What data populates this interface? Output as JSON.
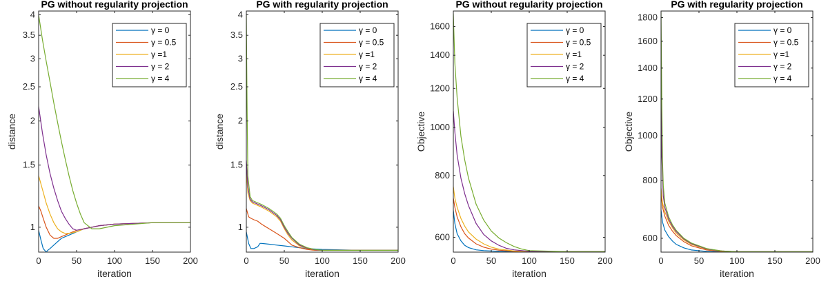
{
  "chart_data": [
    {
      "type": "line",
      "title": "PG without regularity projection",
      "xlabel": "iteration",
      "ylabel": "distance",
      "xlim": [
        0,
        200
      ],
      "ylim": [
        0.85,
        4.1
      ],
      "yscale": "log",
      "xticks": [
        "0",
        "50",
        "100",
        "150",
        "200"
      ],
      "yticks": [
        {
          "v": 1,
          "label": "1"
        },
        {
          "v": 1.5,
          "label": "1.5"
        },
        {
          "v": 2,
          "label": "2"
        },
        {
          "v": 2.5,
          "label": "2.5"
        },
        {
          "v": 3,
          "label": "3"
        },
        {
          "v": 3.5,
          "label": "3.5"
        },
        {
          "v": 4,
          "label": "4"
        }
      ],
      "legend_position": "top-right",
      "series": [
        {
          "name": "γ = 0",
          "color": "#0072BD",
          "x": [
            0,
            3,
            6,
            8,
            10,
            12,
            15,
            20,
            25,
            30,
            40,
            50,
            60,
            80,
            100,
            150,
            200
          ],
          "y": [
            0.98,
            0.92,
            0.87,
            0.86,
            0.85,
            0.86,
            0.87,
            0.89,
            0.91,
            0.93,
            0.95,
            0.97,
            0.99,
            1.01,
            1.02,
            1.03,
            1.03
          ]
        },
        {
          "name": "γ = 0.5",
          "color": "#D95319",
          "x": [
            0,
            3,
            6,
            10,
            15,
            20,
            25,
            30,
            40,
            50,
            60,
            80,
            100,
            150,
            200
          ],
          "y": [
            1.15,
            1.11,
            1.06,
            1.0,
            0.95,
            0.93,
            0.93,
            0.94,
            0.96,
            0.98,
            0.99,
            1.01,
            1.02,
            1.03,
            1.03
          ]
        },
        {
          "name": "γ =1",
          "color": "#EDB120",
          "x": [
            0,
            5,
            10,
            15,
            20,
            25,
            30,
            35,
            40,
            50,
            60,
            80,
            100,
            150,
            200
          ],
          "y": [
            1.4,
            1.28,
            1.17,
            1.09,
            1.03,
            0.99,
            0.97,
            0.96,
            0.96,
            0.97,
            0.99,
            1.01,
            1.02,
            1.03,
            1.03
          ]
        },
        {
          "name": "γ = 2",
          "color": "#7E2F8E",
          "x": [
            0,
            5,
            10,
            15,
            20,
            25,
            30,
            35,
            40,
            45,
            50,
            60,
            80,
            100,
            150,
            200
          ],
          "y": [
            2.2,
            1.85,
            1.6,
            1.42,
            1.29,
            1.19,
            1.11,
            1.06,
            1.02,
            0.99,
            0.98,
            0.99,
            1.01,
            1.02,
            1.03,
            1.03
          ]
        },
        {
          "name": "γ = 4",
          "color": "#77AC30",
          "x": [
            0,
            5,
            10,
            15,
            20,
            25,
            30,
            35,
            40,
            45,
            50,
            55,
            60,
            70,
            80,
            100,
            150,
            200
          ],
          "y": [
            4.0,
            3.4,
            2.95,
            2.58,
            2.25,
            1.98,
            1.75,
            1.56,
            1.4,
            1.27,
            1.17,
            1.09,
            1.03,
            0.99,
            0.99,
            1.01,
            1.03,
            1.03
          ]
        }
      ]
    },
    {
      "type": "line",
      "title": "PG with regularity projection",
      "xlabel": "iteration",
      "ylabel": "distance",
      "xlim": [
        0,
        200
      ],
      "ylim": [
        0.85,
        4.1
      ],
      "yscale": "log",
      "xticks": [
        "0",
        "50",
        "100",
        "150",
        "200"
      ],
      "yticks": [
        {
          "v": 1,
          "label": "1"
        },
        {
          "v": 1.5,
          "label": "1.5"
        },
        {
          "v": 2,
          "label": "2"
        },
        {
          "v": 2.5,
          "label": "2.5"
        },
        {
          "v": 3,
          "label": "3"
        },
        {
          "v": 3.5,
          "label": "3.5"
        },
        {
          "v": 4,
          "label": "4"
        }
      ],
      "legend_position": "top-right",
      "series": [
        {
          "name": "γ = 0",
          "color": "#0072BD",
          "x": [
            0,
            3,
            6,
            10,
            15,
            18,
            20,
            30,
            40,
            50,
            60,
            70,
            80,
            100,
            150,
            200
          ],
          "y": [
            0.97,
            0.9,
            0.87,
            0.87,
            0.88,
            0.9,
            0.9,
            0.895,
            0.89,
            0.885,
            0.88,
            0.875,
            0.87,
            0.865,
            0.86,
            0.86
          ]
        },
        {
          "name": "γ = 0.5",
          "color": "#D95319",
          "x": [
            0,
            3,
            6,
            10,
            15,
            20,
            30,
            40,
            50,
            55,
            60,
            70,
            80,
            90,
            100,
            150,
            200
          ],
          "y": [
            1.13,
            1.07,
            1.06,
            1.05,
            1.04,
            1.02,
            0.99,
            0.96,
            0.93,
            0.91,
            0.89,
            0.875,
            0.865,
            0.86,
            0.86,
            0.86,
            0.86
          ]
        },
        {
          "name": "γ =1",
          "color": "#EDB120",
          "x": [
            0,
            2,
            5,
            8,
            12,
            20,
            30,
            40,
            45,
            50,
            55,
            60,
            70,
            80,
            90,
            100,
            150,
            200
          ],
          "y": [
            1.45,
            1.25,
            1.19,
            1.17,
            1.16,
            1.14,
            1.11,
            1.07,
            1.04,
            0.99,
            0.95,
            0.92,
            0.885,
            0.87,
            0.862,
            0.86,
            0.86,
            0.86
          ]
        },
        {
          "name": "γ = 2",
          "color": "#7E2F8E",
          "x": [
            0,
            2,
            5,
            8,
            12,
            20,
            30,
            40,
            45,
            50,
            55,
            60,
            70,
            80,
            90,
            100,
            150,
            200
          ],
          "y": [
            1.55,
            1.3,
            1.2,
            1.18,
            1.17,
            1.15,
            1.12,
            1.08,
            1.05,
            1.0,
            0.96,
            0.93,
            0.89,
            0.872,
            0.863,
            0.86,
            0.86,
            0.86
          ]
        },
        {
          "name": "γ = 4",
          "color": "#77AC30",
          "x": [
            0,
            1,
            2,
            5,
            8,
            12,
            20,
            30,
            40,
            45,
            50,
            55,
            60,
            70,
            80,
            90,
            100,
            150,
            200
          ],
          "y": [
            4.0,
            2.2,
            1.4,
            1.22,
            1.19,
            1.18,
            1.16,
            1.13,
            1.09,
            1.06,
            1.01,
            0.97,
            0.935,
            0.895,
            0.875,
            0.865,
            0.86,
            0.86,
            0.86
          ]
        }
      ]
    },
    {
      "type": "line",
      "title": "PG without regularity projection",
      "xlabel": "iteration",
      "ylabel": "Objective",
      "xlim": [
        0,
        200
      ],
      "ylim": [
        560,
        1720
      ],
      "yscale": "log",
      "xticks": [
        "0",
        "50",
        "100",
        "150",
        "200"
      ],
      "yticks": [
        {
          "v": 600,
          "label": "600"
        },
        {
          "v": 800,
          "label": "800"
        },
        {
          "v": 1000,
          "label": "1000"
        },
        {
          "v": 1200,
          "label": "1200"
        },
        {
          "v": 1400,
          "label": "1400"
        },
        {
          "v": 1600,
          "label": "1600"
        }
      ],
      "legend_position": "top-right",
      "series": [
        {
          "name": "γ = 0",
          "color": "#0072BD",
          "x": [
            0,
            2,
            5,
            10,
            15,
            20,
            30,
            40,
            60,
            80,
            100,
            150,
            200
          ],
          "y": [
            680,
            640,
            610,
            590,
            578,
            572,
            566,
            564,
            562,
            561,
            561,
            561,
            561
          ]
        },
        {
          "name": "γ = 0.5",
          "color": "#D95319",
          "x": [
            0,
            2,
            5,
            10,
            15,
            20,
            30,
            40,
            50,
            60,
            80,
            100,
            150,
            200
          ],
          "y": [
            720,
            690,
            660,
            630,
            610,
            598,
            582,
            573,
            568,
            565,
            562,
            561,
            561,
            561
          ]
        },
        {
          "name": "γ =1",
          "color": "#EDB120",
          "x": [
            0,
            2,
            5,
            10,
            15,
            20,
            30,
            40,
            50,
            60,
            80,
            100,
            150,
            200
          ],
          "y": [
            760,
            720,
            690,
            655,
            632,
            615,
            595,
            582,
            573,
            568,
            563,
            561,
            561,
            561
          ]
        },
        {
          "name": "γ = 2",
          "color": "#7E2F8E",
          "x": [
            0,
            2,
            5,
            10,
            15,
            20,
            30,
            40,
            50,
            60,
            70,
            80,
            100,
            150,
            200
          ],
          "y": [
            1080,
            980,
            880,
            790,
            735,
            695,
            640,
            608,
            590,
            578,
            570,
            566,
            562,
            561,
            561
          ]
        },
        {
          "name": "γ = 4",
          "color": "#77AC30",
          "x": [
            0,
            2,
            5,
            10,
            15,
            20,
            30,
            40,
            50,
            60,
            70,
            80,
            90,
            100,
            150,
            200
          ],
          "y": [
            1700,
            1350,
            1150,
            960,
            860,
            790,
            700,
            650,
            618,
            598,
            585,
            575,
            568,
            564,
            561,
            561
          ]
        }
      ]
    },
    {
      "type": "line",
      "title": "PG with regularity projection",
      "xlabel": "iteration",
      "ylabel": "Objective",
      "xlim": [
        0,
        200
      ],
      "ylim": [
        560,
        1860
      ],
      "yscale": "log",
      "xticks": [
        "0",
        "50",
        "100",
        "150",
        "200"
      ],
      "yticks": [
        {
          "v": 600,
          "label": "600"
        },
        {
          "v": 800,
          "label": "800"
        },
        {
          "v": 1000,
          "label": "1000"
        },
        {
          "v": 1200,
          "label": "1200"
        },
        {
          "v": 1400,
          "label": "1400"
        },
        {
          "v": 1600,
          "label": "1600"
        },
        {
          "v": 1800,
          "label": "1800"
        }
      ],
      "legend_position": "top-right",
      "series": [
        {
          "name": "γ = 0",
          "color": "#0072BD",
          "x": [
            0,
            2,
            5,
            10,
            15,
            20,
            30,
            40,
            60,
            80,
            100,
            150,
            200
          ],
          "y": [
            690,
            650,
            625,
            605,
            592,
            582,
            572,
            566,
            562,
            561,
            561,
            561,
            561
          ]
        },
        {
          "name": "γ = 0.5",
          "color": "#D95319",
          "x": [
            0,
            2,
            5,
            10,
            15,
            20,
            30,
            40,
            60,
            80,
            100,
            150,
            200
          ],
          "y": [
            750,
            700,
            670,
            640,
            622,
            608,
            590,
            578,
            566,
            562,
            561,
            561,
            561
          ]
        },
        {
          "name": "γ =1",
          "color": "#EDB120",
          "x": [
            0,
            2,
            5,
            10,
            15,
            20,
            30,
            40,
            60,
            80,
            100,
            150,
            200
          ],
          "y": [
            770,
            715,
            685,
            653,
            632,
            615,
            595,
            582,
            568,
            563,
            561,
            561,
            561
          ]
        },
        {
          "name": "γ = 2",
          "color": "#7E2F8E",
          "x": [
            0,
            1,
            3,
            5,
            10,
            15,
            20,
            30,
            40,
            60,
            80,
            100,
            150,
            200
          ],
          "y": [
            1260,
            900,
            740,
            700,
            660,
            637,
            620,
            598,
            584,
            569,
            563,
            561,
            561,
            561
          ]
        },
        {
          "name": "γ = 4",
          "color": "#77AC30",
          "x": [
            0,
            1,
            2,
            3,
            5,
            10,
            15,
            20,
            30,
            40,
            60,
            80,
            100,
            150,
            200
          ],
          "y": [
            1850,
            1200,
            880,
            780,
            715,
            668,
            642,
            624,
            600,
            586,
            570,
            563,
            561,
            561,
            561
          ]
        }
      ]
    }
  ]
}
